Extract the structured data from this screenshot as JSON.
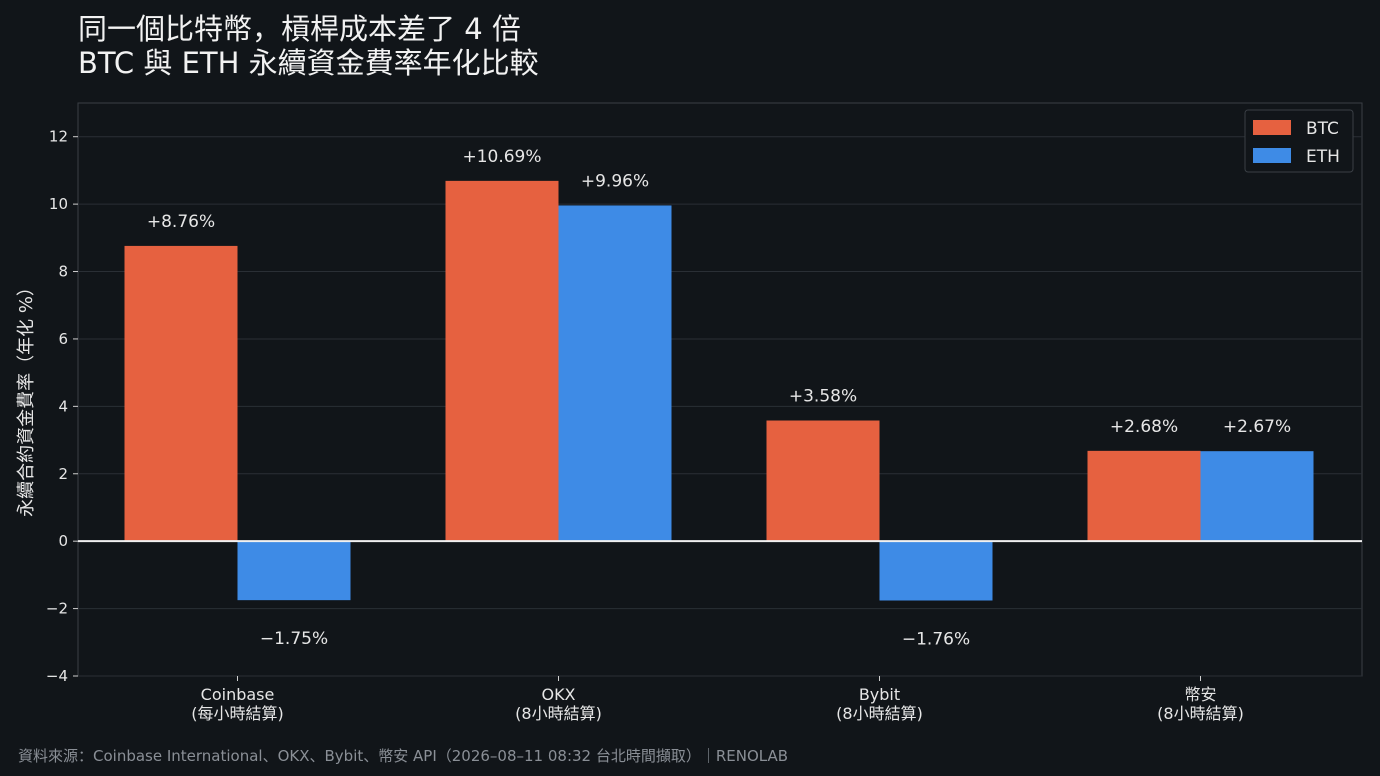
{
  "title": {
    "line1": "同一個比特幣，槓桿成本差了 4 倍",
    "line2": "BTC 與 ETH 永續資金費率年化比較"
  },
  "source": "資料來源：Coinbase International、OKX、Bybit、幣安 API（2026–08–11 08:32 台北時間擷取）｜RENOLAB",
  "colors": {
    "background": "#111519",
    "btc": "#E66140",
    "eth": "#3E8BE6",
    "grid": "#2a2f35",
    "text": "#e6e6e6"
  },
  "chart_data": {
    "type": "bar",
    "ylabel": "永續合約資金費率（年化 %）",
    "ylim": [
      -4,
      13
    ],
    "yticks": [
      -4,
      -2,
      0,
      2,
      4,
      6,
      8,
      10,
      12
    ],
    "ytick_labels": [
      "−4",
      "−2",
      "0",
      "2",
      "4",
      "6",
      "8",
      "10",
      "12"
    ],
    "categories": [
      [
        "Coinbase",
        "(每小時結算)"
      ],
      [
        "OKX",
        "(8小時結算)"
      ],
      [
        "Bybit",
        "(8小時結算)"
      ],
      [
        "幣安",
        "(8小時結算)"
      ]
    ],
    "series": [
      {
        "name": "BTC",
        "color": "#E66140",
        "values": [
          8.76,
          10.69,
          3.58,
          2.68
        ],
        "labels": [
          "+8.76%",
          "+10.69%",
          "+3.58%",
          "+2.68%"
        ]
      },
      {
        "name": "ETH",
        "color": "#3E8BE6",
        "values": [
          -1.75,
          9.96,
          -1.76,
          2.67
        ],
        "labels": [
          "−1.75%",
          "+9.96%",
          "−1.76%",
          "+2.67%"
        ]
      }
    ],
    "legend": "top-right",
    "grid": true
  }
}
